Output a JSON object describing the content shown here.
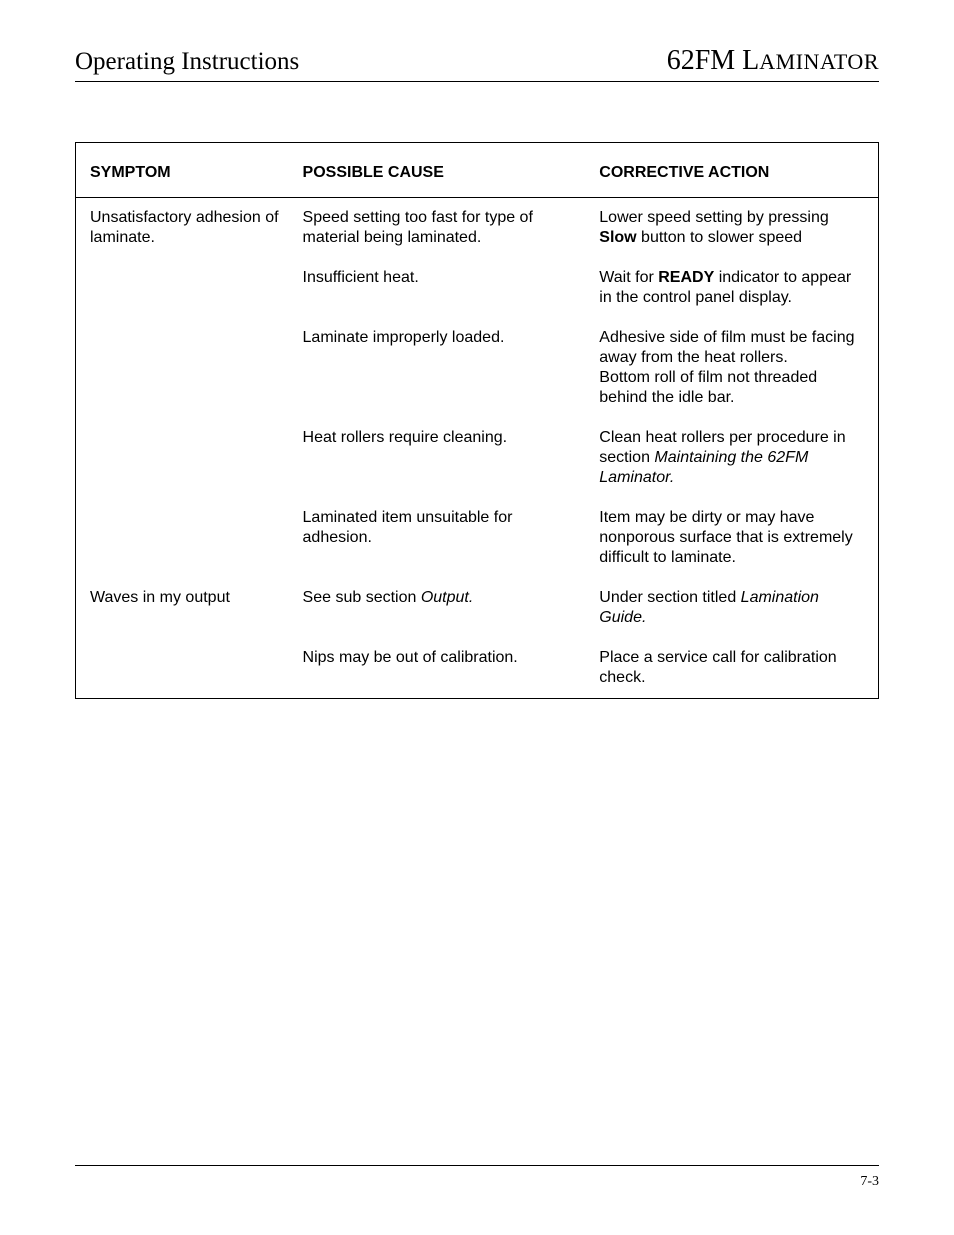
{
  "header": {
    "left": "Operating Instructions",
    "right_model": "62FM",
    "right_word_first": "L",
    "right_word_rest": "AMINATOR"
  },
  "table": {
    "columns": {
      "symptom": "SYMPTOM",
      "cause": "POSSIBLE CAUSE",
      "action": "CORRECTIVE ACTION"
    },
    "section1": {
      "symptom": "Unsatisfactory adhesion of laminate.",
      "rows": {
        "r1": {
          "cause": "Speed setting too fast for type of material being laminated.",
          "action_pre": "Lower speed setting by pressing ",
          "action_bold": "Slow",
          "action_post": " button to slower speed"
        },
        "r2": {
          "cause": "Insufficient heat.",
          "action_pre": "Wait for ",
          "action_bold": "READY",
          "action_post": " indicator to appear in the control panel display."
        },
        "r3": {
          "cause": "Laminate improperly loaded.",
          "action": "Adhesive side of film must be facing away from the heat rollers.\nBottom roll of film not threaded behind the idle bar."
        },
        "r4": {
          "cause": "Heat rollers require cleaning.",
          "action_pre": "Clean heat rollers per procedure in section ",
          "action_italic": "Maintaining the 62FM Laminator."
        },
        "r5": {
          "cause": "Laminated item unsuitable for adhesion.",
          "action": "Item may be dirty or may have nonporous surface that is extremely difficult to laminate."
        }
      }
    },
    "section2": {
      "symptom": "Waves in my output",
      "rows": {
        "r1": {
          "cause_pre": "See sub section ",
          "cause_italic": "Output.",
          "action_pre": "Under section titled ",
          "action_italic": "Lamination Guide."
        },
        "r2": {
          "cause": "Nips may be out of calibration.",
          "action": "Place a service call for calibration check."
        }
      }
    }
  },
  "footer": {
    "page": "7-3"
  }
}
